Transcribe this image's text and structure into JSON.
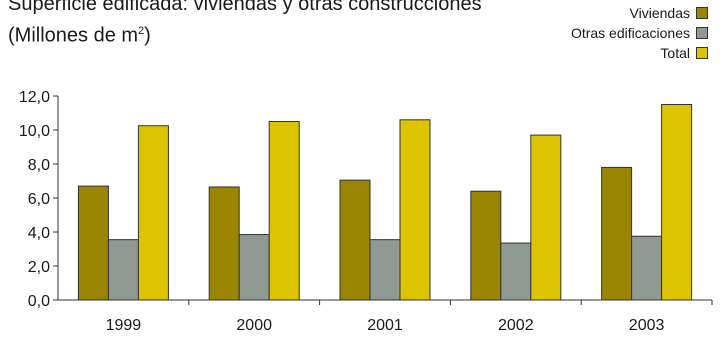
{
  "chart_data": {
    "type": "bar",
    "title": "Superficie edificada: viviendas y otras construcciones",
    "subtitle_prefix": "(Millones de m",
    "subtitle_sup": "2",
    "subtitle_suffix": ")",
    "categories": [
      "1999",
      "2000",
      "2001",
      "2002",
      "2003"
    ],
    "series": [
      {
        "name": "Viviendas",
        "color": "#998500",
        "values": [
          6.7,
          6.65,
          7.05,
          6.4,
          7.8
        ]
      },
      {
        "name": "Otras edificaciones",
        "color": "#909a92",
        "values": [
          3.55,
          3.85,
          3.55,
          3.35,
          3.75
        ]
      },
      {
        "name": "Total",
        "color": "#dcc400",
        "values": [
          10.25,
          10.5,
          10.6,
          9.7,
          11.5
        ]
      }
    ],
    "ylim": [
      0,
      12
    ],
    "yticks": [
      "0,0",
      "2,0",
      "4,0",
      "6,0",
      "8,0",
      "10,0",
      "12,0"
    ],
    "ytick_values": [
      0,
      2,
      4,
      6,
      8,
      10,
      12
    ],
    "legend_position": "top-right",
    "grid": false
  }
}
